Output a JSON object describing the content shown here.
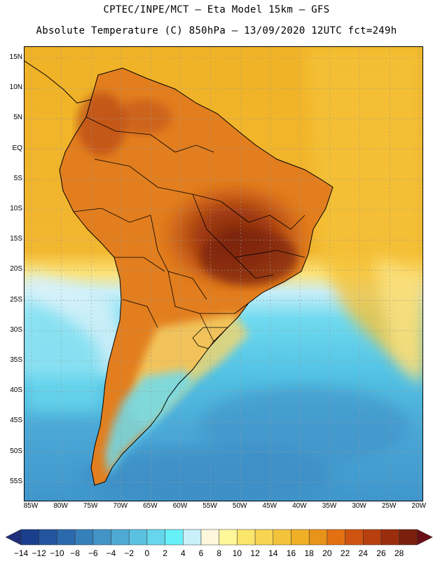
{
  "header": {
    "line1": "CPTEC/INPE/MCT –  Eta Model 15km – GFS",
    "line2": "Absolute Temperature (C) 850hPa – 13/09/2020 12UTC fct=249h"
  },
  "map": {
    "lat_labels": [
      "15N",
      "10N",
      "5N",
      "EQ",
      "5S",
      "10S",
      "15S",
      "20S",
      "25S",
      "30S",
      "35S",
      "40S",
      "45S",
      "50S",
      "55S"
    ],
    "lon_labels": [
      "85W",
      "80W",
      "75W",
      "70W",
      "65W",
      "60W",
      "55W",
      "50W",
      "45W",
      "40W",
      "35W",
      "30W",
      "25W",
      "20W"
    ]
  },
  "colorbar": {
    "labels": [
      "-14",
      "-12",
      "-10",
      "-8",
      "-6",
      "-4",
      "-2",
      "0",
      "2",
      "4",
      "6",
      "8",
      "10",
      "12",
      "14",
      "16",
      "18",
      "20",
      "22",
      "24",
      "26",
      "28"
    ],
    "colors": [
      "#1a3f8c",
      "#23559e",
      "#2b6aad",
      "#3680ba",
      "#4294c6",
      "#4eaad3",
      "#5bc1e0",
      "#66d6ec",
      "#66f0f8",
      "#c8f1fb",
      "#fff7dc",
      "#fff79a",
      "#fbe56a",
      "#f7d452",
      "#f3c33c",
      "#f0b026",
      "#e8931a",
      "#e37114",
      "#cf5411",
      "#b8400e",
      "#9a2d0d",
      "#7a1f0d"
    ],
    "low_arrow_color": "#1f2f7a",
    "high_arrow_color": "#6a0f18"
  },
  "colors": {
    "ocean_north": "#f2b22a",
    "land_warm": "#e07a1c",
    "hot_core": "#8c2d10",
    "cold_ocean": "#4aa7d6",
    "coast_line": "#000000"
  }
}
